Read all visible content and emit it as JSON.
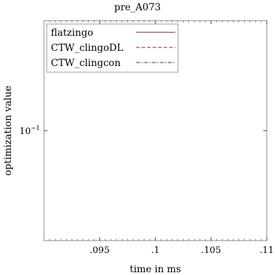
{
  "chart_data": {
    "type": "line",
    "title": "pre_A073",
    "xlabel": "time in ms",
    "ylabel": "optimization value",
    "xlim": [
      0.09,
      0.11
    ],
    "ylim": [
      0.01,
      1.0
    ],
    "y_scale": "log",
    "x_ticks": [
      0.095,
      0.1,
      0.105,
      0.11
    ],
    "x_tick_labels": [
      ".095",
      ".1",
      ".105",
      ".11"
    ],
    "y_tick_value": 0.1,
    "y_tick_base": "10",
    "y_tick_exponent": "−1",
    "grid": false,
    "legend_position": "top-left",
    "series": [
      {
        "name": "flatzingo",
        "style": "solid",
        "color": "#7a1f1f",
        "x": [],
        "y": []
      },
      {
        "name": "CTW_clingoDL",
        "style": "dashed",
        "color": "#7a1f1f",
        "x": [],
        "y": []
      },
      {
        "name": "CTW_clingcon",
        "style": "dashdot",
        "color": "#5a1a4a",
        "x": [],
        "y": []
      }
    ]
  }
}
